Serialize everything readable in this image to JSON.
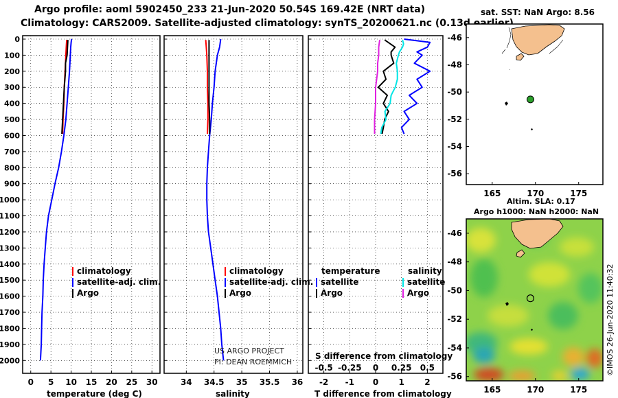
{
  "header": {
    "line1": "Argo profile: aoml 5902450_233 21-Jun-2020 50.54S 169.42E (NRT data)",
    "line2": "Climatology: CARS2009. Satellite-adjusted climatology: synTS_20200621.nc (0.13d earlier)"
  },
  "colors": {
    "argo": "#000000",
    "clim": "#ff0000",
    "sat": "#0000ff",
    "sat_s": "#00e5e5",
    "clim_s": "#e020e0",
    "land": "#f4c08e",
    "float": "#2ca02c"
  },
  "chart_data": [
    {
      "type": "line",
      "title": "",
      "xlabel": "temperature (deg C)",
      "ylabel": "depth",
      "xlim": [
        -2,
        32
      ],
      "ylim": [
        0,
        2080
      ],
      "xticks": [
        "0",
        "5",
        "10",
        "15",
        "20",
        "25",
        "30"
      ],
      "xtick_values": [
        0,
        5,
        10,
        15,
        20,
        25,
        30
      ],
      "yticks": [
        "0",
        "100",
        "200",
        "300",
        "400",
        "500",
        "600",
        "700",
        "800",
        "900",
        "1000",
        "1100",
        "1200",
        "1300",
        "1400",
        "1500",
        "1600",
        "1700",
        "1800",
        "1900",
        "2000"
      ],
      "legend": [
        "climatology",
        "satellite-adj. clim.",
        "Argo"
      ],
      "series": [
        {
          "name": "climatology",
          "color": "#ff0000",
          "depth": [
            5,
            50,
            100,
            150,
            200,
            300,
            400,
            500,
            590
          ],
          "values": [
            8.9,
            8.8,
            8.7,
            8.6,
            8.5,
            8.3,
            8.2,
            8.0,
            7.9
          ]
        },
        {
          "name": "satellite-adj. clim.",
          "color": "#0000ff",
          "depth": [
            0,
            20,
            50,
            100,
            200,
            300,
            400,
            500,
            600,
            700,
            800,
            900,
            1000,
            1100,
            1200,
            1300,
            1400,
            1500,
            1600,
            1700,
            1800,
            1900,
            2000
          ],
          "values": [
            10.1,
            10.0,
            9.9,
            9.8,
            9.6,
            9.3,
            9.0,
            8.7,
            8.2,
            7.6,
            6.9,
            6.0,
            5.2,
            4.4,
            3.9,
            3.6,
            3.3,
            3.1,
            3.0,
            2.8,
            2.7,
            2.6,
            2.4
          ]
        },
        {
          "name": "Argo",
          "color": "#000000",
          "depth": [
            5,
            50,
            100,
            150,
            200,
            300,
            400,
            500,
            590
          ],
          "values": [
            9.2,
            9.1,
            9.0,
            8.6,
            8.6,
            8.3,
            8.1,
            7.9,
            7.7
          ]
        }
      ]
    },
    {
      "type": "line",
      "title": "",
      "xlabel": "salinity",
      "ylabel": "depth",
      "xlim": [
        33.6,
        36.1
      ],
      "ylim": [
        0,
        2080
      ],
      "xticks": [
        "34",
        "34.5",
        "35",
        "35.5",
        "36"
      ],
      "xtick_values": [
        34,
        34.5,
        35,
        35.5,
        36
      ],
      "legend": [
        "climatology",
        "satellite-adj. clim.",
        "Argo"
      ],
      "annotations": [
        "US ARGO PROJECT",
        "PI: DEAN ROEMMICH"
      ],
      "series": [
        {
          "name": "climatology",
          "color": "#ff0000",
          "depth": [
            5,
            50,
            100,
            200,
            300,
            400,
            500,
            590
          ],
          "values": [
            34.35,
            34.36,
            34.37,
            34.38,
            34.38,
            34.39,
            34.39,
            34.38
          ]
        },
        {
          "name": "satellite-adj. clim.",
          "color": "#0000ff",
          "depth": [
            0,
            50,
            100,
            200,
            300,
            400,
            500,
            600,
            700,
            800,
            900,
            1000,
            1100,
            1200,
            1300,
            1400,
            1500,
            1600,
            1700,
            1800,
            1900,
            2000
          ],
          "values": [
            34.62,
            34.6,
            34.56,
            34.52,
            34.5,
            34.47,
            34.45,
            34.42,
            34.4,
            34.38,
            34.37,
            34.37,
            34.38,
            34.4,
            34.44,
            34.48,
            34.52,
            34.56,
            34.59,
            34.62,
            34.64,
            34.67
          ]
        },
        {
          "name": "Argo",
          "color": "#000000",
          "depth": [
            5,
            100,
            200,
            300,
            400,
            500,
            590
          ],
          "values": [
            34.41,
            34.41,
            34.41,
            34.41,
            34.41,
            34.42,
            34.42
          ]
        }
      ]
    },
    {
      "type": "line",
      "title": "",
      "xlabel": "T difference from climatology",
      "xlabel2": "S difference from climatology",
      "ylabel": "depth",
      "xlim": [
        -2.6,
        2.6
      ],
      "ylim": [
        0,
        2080
      ],
      "xticks": [
        "-2",
        "-1",
        "0",
        "1",
        "2"
      ],
      "xtick_values": [
        -2,
        -1,
        0,
        1,
        2
      ],
      "xticks2": [
        "-0.5",
        "-0.25",
        "0",
        "0.25",
        "0.5"
      ],
      "legend_temperature_title": "temperature",
      "legend_salinity_title": "salinity",
      "legend": [
        "satellite",
        "Argo",
        "satellite",
        "Argo"
      ],
      "series": [
        {
          "name": "T satellite",
          "color": "#0000ff",
          "depth": [
            0,
            20,
            50,
            80,
            100,
            150,
            200,
            250,
            300,
            350,
            400,
            450,
            500,
            550,
            590
          ],
          "values": [
            1.1,
            2.1,
            2.0,
            1.6,
            1.8,
            1.5,
            2.1,
            1.6,
            1.8,
            1.3,
            1.6,
            1.1,
            1.3,
            1.0,
            1.1
          ]
        },
        {
          "name": "T Argo",
          "color": "#000000",
          "depth": [
            5,
            50,
            80,
            100,
            150,
            200,
            250,
            300,
            350,
            400,
            450,
            500,
            550,
            590
          ],
          "values": [
            0.35,
            0.75,
            0.6,
            0.6,
            0.7,
            0.3,
            0.4,
            0.1,
            0.45,
            0.3,
            0.5,
            0.35,
            0.3,
            0.25
          ]
        },
        {
          "name": "S satellite",
          "color": "#00e5e5",
          "depth": [
            5,
            30,
            50,
            80,
            100,
            150,
            200,
            250,
            300,
            350,
            400,
            450,
            500,
            550,
            590
          ],
          "values": [
            0.26,
            0.27,
            0.26,
            0.23,
            0.22,
            0.2,
            0.21,
            0.21,
            0.19,
            0.15,
            0.14,
            0.09,
            0.1,
            0.06,
            0.05
          ]
        },
        {
          "name": "S Argo",
          "color": "#e020e0",
          "depth": [
            5,
            50,
            100,
            150,
            200,
            300,
            400,
            500,
            590
          ],
          "values": [
            0.04,
            0.03,
            0.03,
            0.02,
            0.02,
            0.0,
            0.0,
            -0.01,
            -0.01
          ]
        }
      ]
    },
    {
      "type": "scatter",
      "title": "sat. SST: NaN Argo: 8.56",
      "xlim": [
        162,
        177.8
      ],
      "ylim": [
        -56.8,
        -45
      ],
      "xticks": [
        "165",
        "170",
        "175"
      ],
      "xtick_values": [
        165,
        170,
        175
      ],
      "yticks": [
        "-46",
        "-48",
        "-50",
        "-52",
        "-54",
        "-56"
      ],
      "ytick_values": [
        -46,
        -48,
        -50,
        -52,
        -54,
        -56
      ],
      "x": [
        169.42
      ],
      "y": [
        -50.54
      ]
    },
    {
      "type": "heatmap",
      "title": "Altim. SLA: 0.17",
      "title2": "Argo h1000: NaN h2000: NaN",
      "xlim": [
        162,
        177.8
      ],
      "ylim": [
        -56.3,
        -45
      ],
      "xticks": [
        "165",
        "170",
        "175"
      ],
      "xtick_values": [
        165,
        170,
        175
      ],
      "yticks": [
        "-46",
        "-48",
        "-50",
        "-52",
        "-54",
        "-56"
      ],
      "ytick_values": [
        -46,
        -48,
        -50,
        -52,
        -54,
        -56
      ],
      "x": [
        169.42
      ],
      "y": [
        -50.54
      ],
      "credit": "©IMOS 26-Jun-2020 11:40:32"
    }
  ]
}
